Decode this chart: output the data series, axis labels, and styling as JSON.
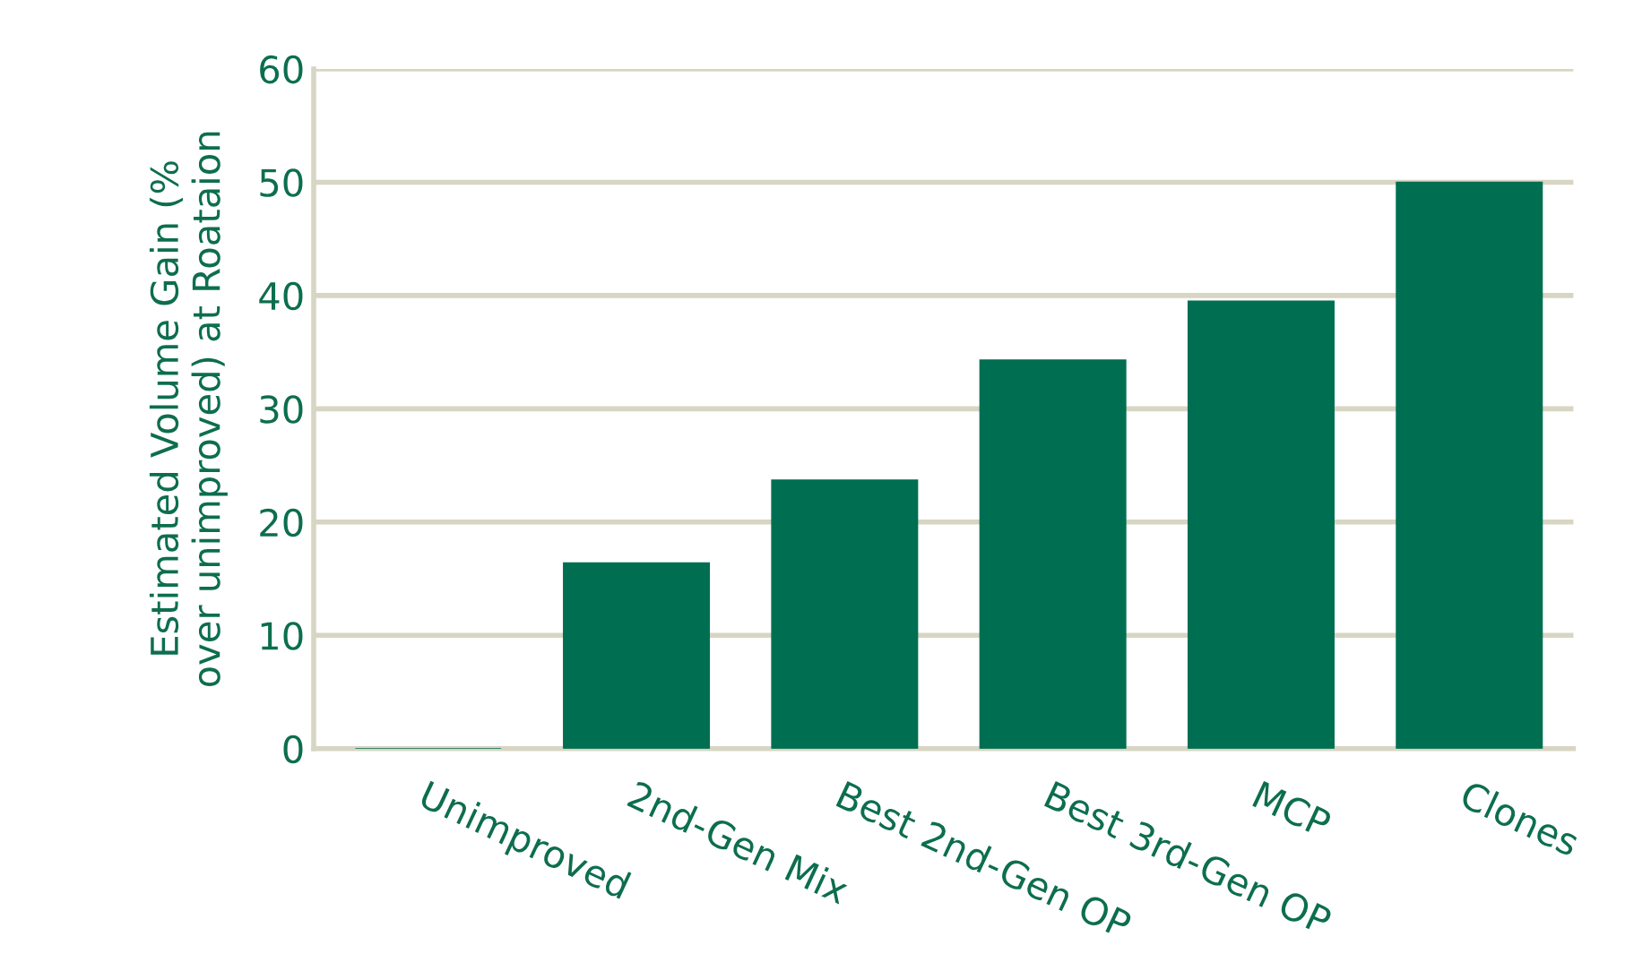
{
  "chart_data": {
    "type": "bar",
    "ylabel": "Estimated Volume Gain (% over unimproved) at Roataion",
    "categories": [
      "Unimproved",
      "2nd-Gen Mix",
      "Best 2nd-Gen OP",
      "Best 3rd-Gen OP",
      "MCP",
      "Clones"
    ],
    "values": [
      0,
      16.4,
      23.7,
      34.3,
      39.5,
      50
    ],
    "color": "#006f51",
    "ylim": [
      0,
      60
    ],
    "yticks": [
      0,
      10,
      20,
      30,
      40,
      50,
      60
    ],
    "grid": "y"
  }
}
